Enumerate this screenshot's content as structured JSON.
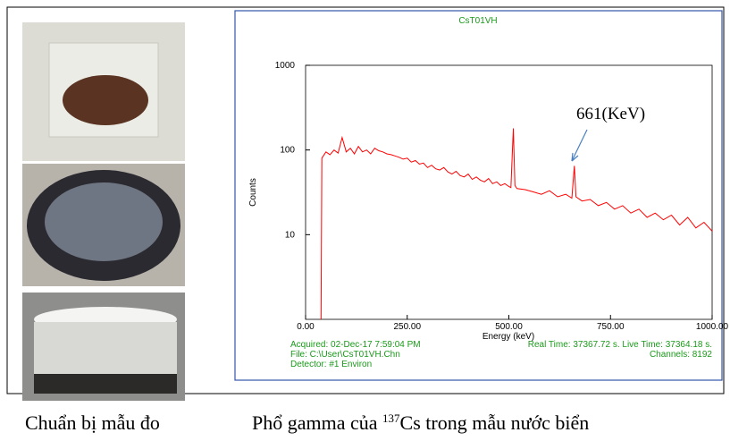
{
  "chart_data": {
    "type": "line",
    "title": "CsT01VH",
    "x_label": "Energy (keV)",
    "y_label": "Counts",
    "log_y": true,
    "color": "#ff0000",
    "xlim": [
      0,
      1000
    ],
    "ylim": [
      1,
      1000
    ],
    "xticks": [
      {
        "value": 0,
        "label": "0.00"
      },
      {
        "value": 250,
        "label": "250.00"
      },
      {
        "value": 500,
        "label": "500.00"
      },
      {
        "value": 750,
        "label": "750.00"
      },
      {
        "value": 1000,
        "label": "1000.00"
      }
    ],
    "yticks": [
      10,
      100,
      1000
    ],
    "annotation": "661(KeV)",
    "x": [
      38,
      40,
      50,
      60,
      70,
      80,
      90,
      100,
      110,
      120,
      130,
      140,
      150,
      160,
      170,
      180,
      190,
      200,
      210,
      220,
      230,
      240,
      250,
      260,
      270,
      280,
      290,
      300,
      310,
      320,
      330,
      340,
      350,
      360,
      370,
      380,
      390,
      400,
      410,
      420,
      430,
      440,
      450,
      460,
      470,
      480,
      490,
      500,
      505,
      511,
      515,
      520,
      540,
      560,
      580,
      600,
      620,
      640,
      655,
      661,
      665,
      680,
      700,
      720,
      740,
      760,
      780,
      800,
      820,
      840,
      860,
      880,
      900,
      920,
      940,
      960,
      980,
      1000
    ],
    "values": [
      1,
      80,
      95,
      88,
      100,
      92,
      140,
      95,
      105,
      90,
      110,
      95,
      100,
      90,
      105,
      98,
      95,
      90,
      88,
      85,
      82,
      78,
      80,
      72,
      75,
      68,
      70,
      62,
      66,
      60,
      58,
      62,
      55,
      52,
      56,
      50,
      48,
      52,
      45,
      48,
      44,
      42,
      46,
      40,
      42,
      38,
      40,
      37,
      36,
      180,
      38,
      35,
      34,
      32,
      30,
      33,
      28,
      30,
      27,
      65,
      28,
      25,
      26,
      22,
      24,
      20,
      22,
      18,
      20,
      16,
      18,
      15,
      17,
      13,
      16,
      12,
      14,
      11
    ]
  },
  "info": {
    "acquired": "Acquired:  02-Dec-17 7:59:04 PM",
    "file": "File:  C:\\User\\CsT01VH.Chn",
    "detector": "Detector:  #1 Environ",
    "times": "Real Time: 37367.72 s.  Live Time: 37364.18 s.",
    "channels": "Channels:  8192"
  },
  "captions": {
    "left": "Chuẩn bị mẫu đo",
    "right_prefix": "Phổ gamma của ",
    "right_sup": "137",
    "right_suffix": "Cs trong mẫu nước biển"
  }
}
